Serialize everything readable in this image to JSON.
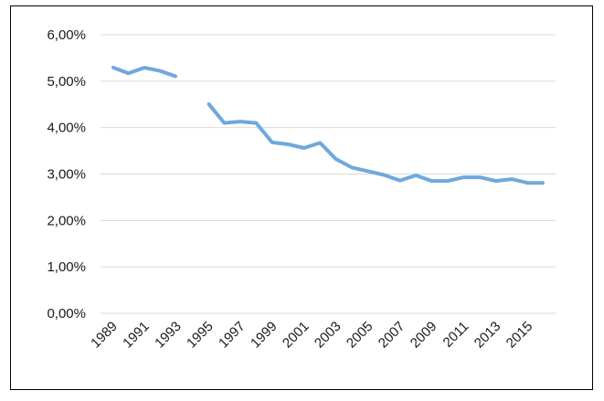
{
  "chart_data": {
    "type": "line",
    "title": "",
    "xlabel": "",
    "ylabel": "",
    "x": [
      1989,
      1990,
      1991,
      1992,
      1993,
      1994,
      1995,
      1996,
      1997,
      1998,
      1999,
      2000,
      2001,
      2002,
      2003,
      2004,
      2005,
      2006,
      2007,
      2008,
      2009,
      2010,
      2011,
      2012,
      2013,
      2014,
      2015,
      2016
    ],
    "series": [
      {
        "color": "#6fa8dc",
        "values": [
          5.3,
          5.17,
          5.29,
          5.22,
          5.1,
          null,
          4.52,
          4.1,
          4.13,
          4.1,
          3.68,
          3.64,
          3.56,
          3.67,
          3.32,
          3.14,
          3.06,
          2.98,
          2.86,
          2.97,
          2.85,
          2.85,
          2.93,
          2.93,
          2.85,
          2.89,
          2.81,
          2.81
        ]
      }
    ],
    "ylim": [
      0,
      6
    ],
    "y_ticks": [
      0,
      1,
      2,
      3,
      4,
      5,
      6
    ],
    "y_tick_labels": [
      "0,00%",
      "1,00%",
      "2,00%",
      "3,00%",
      "4,00%",
      "5,00%",
      "6,00%"
    ],
    "x_tick_labels": [
      "1989",
      "1991",
      "1993",
      "1995",
      "1997",
      "1999",
      "2001",
      "2003",
      "2005",
      "2007",
      "2009",
      "2011",
      "2013",
      "2015"
    ],
    "grid": true,
    "legend": "none"
  }
}
